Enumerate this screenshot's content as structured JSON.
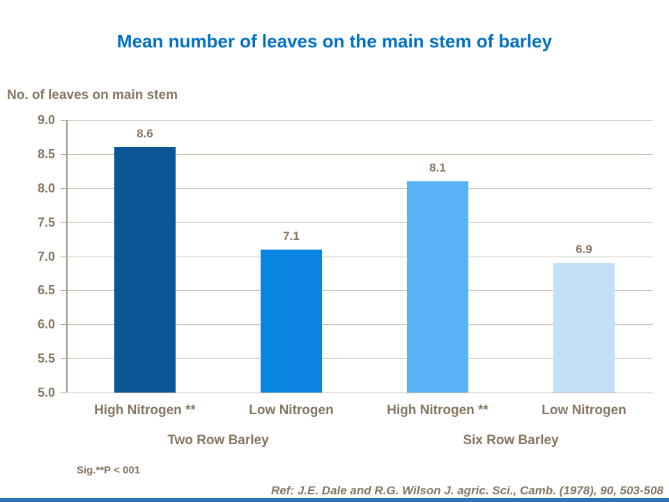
{
  "title": "Mean number of leaves on the main stem of barley",
  "y_axis_title": "No. of leaves on main stem",
  "footer": {
    "sig_note": "Sig.**P  < 001",
    "reference": "Ref: J.E. Dale and R.G. Wilson J. agric. Sci., Camb. (1978), 90, 503-508"
  },
  "colors": {
    "title_text": "#0070C0",
    "body_text": "#86755F",
    "gridline": "#C9BEAF",
    "axis_line": "#A3977F",
    "bottom_strip": "#2E74B5"
  },
  "chart_data": {
    "type": "bar",
    "categories": [
      "High Nitrogen **",
      "Low Nitrogen",
      "High Nitrogen **",
      "Low Nitrogen"
    ],
    "values": [
      8.6,
      7.1,
      8.1,
      6.9
    ],
    "bar_colors": [
      "#0B5796",
      "#0984E0",
      "#5AB2F6",
      "#C3E0F9"
    ],
    "groups": [
      {
        "label": "Two Row Barley",
        "bars": [
          0,
          1
        ]
      },
      {
        "label": "Six Row Barley",
        "bars": [
          2,
          3
        ]
      }
    ],
    "title": "Mean number of leaves on the main stem of barley",
    "xlabel": "",
    "ylabel": "No. of leaves on main stem",
    "ylim": [
      5.0,
      9.0
    ],
    "ytick_step": 0.5,
    "ytick_labels": [
      "9.0",
      "8.5",
      "8.0",
      "7.5",
      "7.0",
      "6.5",
      "6.0",
      "5.5",
      "5.0"
    ],
    "grid": true,
    "legend": false,
    "data_labels": [
      "8.6",
      "7.1",
      "8.1",
      "6.9"
    ],
    "annotations": [
      "Sig.**P  < 001",
      "Ref: J.E. Dale and R.G. Wilson J. agric. Sci., Camb. (1978), 90, 503-508"
    ]
  }
}
